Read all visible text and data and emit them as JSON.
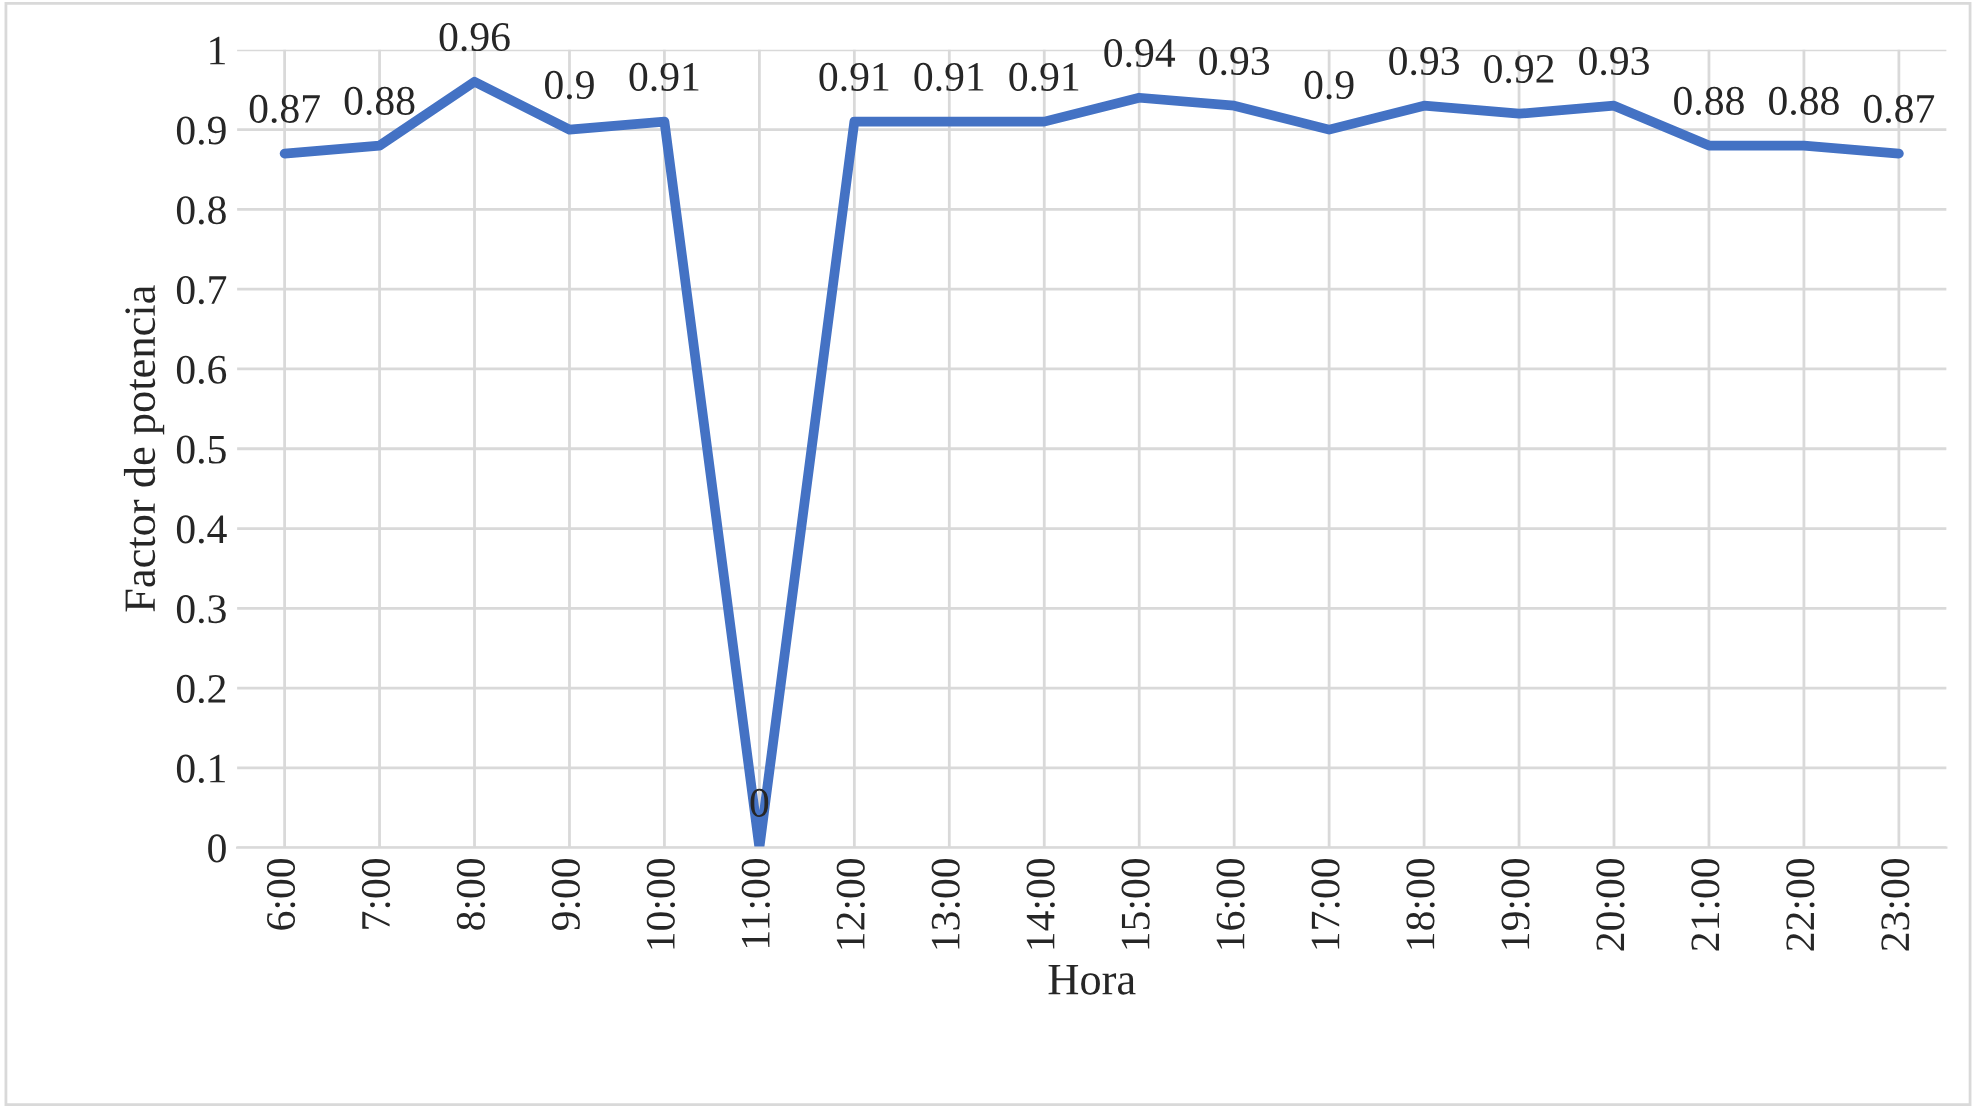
{
  "chart_data": {
    "type": "line",
    "xlabel": "Hora",
    "ylabel": "Factor de potencia",
    "categories": [
      "6:00",
      "7:00",
      "8:00",
      "9:00",
      "10:00",
      "11:00",
      "12:00",
      "13:00",
      "14:00",
      "15:00",
      "16:00",
      "17:00",
      "18:00",
      "19:00",
      "20:00",
      "21:00",
      "22:00",
      "23:00"
    ],
    "values": [
      0.87,
      0.88,
      0.96,
      0.9,
      0.91,
      0,
      0.91,
      0.91,
      0.91,
      0.94,
      0.93,
      0.9,
      0.93,
      0.92,
      0.93,
      0.88,
      0.88,
      0.87
    ],
    "color": "#4472c4",
    "ylim": [
      0,
      1
    ],
    "yticks": [
      0,
      0.1,
      0.2,
      0.3,
      0.4,
      0.5,
      0.6,
      0.7,
      0.8,
      0.9,
      1
    ],
    "grid": true,
    "data_labels": true,
    "legend": false
  }
}
